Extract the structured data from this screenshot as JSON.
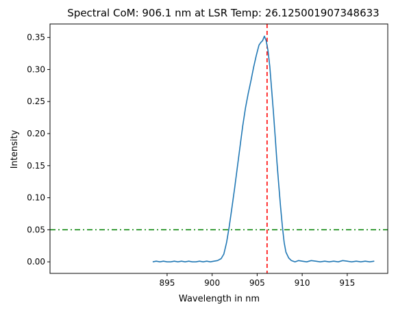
{
  "chart_data": {
    "type": "line",
    "title": "Spectral CoM: 906.1 nm at LSR Temp: 26.125001907348633",
    "xlabel": "Wavelength in nm",
    "ylabel": "Intensity",
    "xlim": [
      882.0,
      919.5
    ],
    "ylim": [
      -0.018,
      0.371
    ],
    "xticks": [
      895,
      900,
      905,
      910,
      915
    ],
    "xtick_labels": [
      "895",
      "900",
      "905",
      "910",
      "915"
    ],
    "yticks": [
      0.0,
      0.05,
      0.1,
      0.15,
      0.2,
      0.25,
      0.3,
      0.35
    ],
    "ytick_labels": [
      "0.00",
      "0.05",
      "0.10",
      "0.15",
      "0.20",
      "0.25",
      "0.30",
      "0.35"
    ],
    "grid": false,
    "series": [
      {
        "color": "#1f77b4",
        "x": [
          893.4,
          893.8,
          894.2,
          894.6,
          895.0,
          895.4,
          895.8,
          896.2,
          896.6,
          897.0,
          897.4,
          897.8,
          898.2,
          898.6,
          899.0,
          899.4,
          899.8,
          900.2,
          900.6,
          901.0,
          901.3,
          901.6,
          901.9,
          902.2,
          902.5,
          902.8,
          903.1,
          903.4,
          903.7,
          904.0,
          904.3,
          904.6,
          904.9,
          905.2,
          905.4,
          905.6,
          905.8,
          906.0,
          906.2,
          906.4,
          906.6,
          906.8,
          907.0,
          907.2,
          907.4,
          907.6,
          907.8,
          908.0,
          908.2,
          908.5,
          908.8,
          909.2,
          909.6,
          910.0,
          910.5,
          911.0,
          911.5,
          912.0,
          912.5,
          913.0,
          913.5,
          914.0,
          914.5,
          915.0,
          915.5,
          916.0,
          916.5,
          917.0,
          917.5,
          918.0
        ],
        "values": [
          0.0,
          0.001,
          0.0,
          0.001,
          0.0,
          0.0,
          0.001,
          0.0,
          0.001,
          0.0,
          0.001,
          0.0,
          0.0,
          0.001,
          0.0,
          0.001,
          0.0,
          0.001,
          0.002,
          0.005,
          0.012,
          0.03,
          0.055,
          0.085,
          0.115,
          0.148,
          0.18,
          0.212,
          0.24,
          0.262,
          0.282,
          0.303,
          0.322,
          0.338,
          0.342,
          0.345,
          0.352,
          0.345,
          0.33,
          0.305,
          0.27,
          0.235,
          0.195,
          0.155,
          0.12,
          0.085,
          0.055,
          0.03,
          0.015,
          0.006,
          0.002,
          0.0,
          0.002,
          0.001,
          0.0,
          0.002,
          0.001,
          0.0,
          0.001,
          0.0,
          0.001,
          0.0,
          0.002,
          0.001,
          0.0,
          0.001,
          0.0,
          0.001,
          0.0,
          0.001
        ]
      }
    ],
    "reference_lines": [
      {
        "orientation": "vertical",
        "value": 906.1,
        "style": "dashed",
        "color": "#ff0000"
      },
      {
        "orientation": "horizontal",
        "value": 0.05,
        "style": "dashdot",
        "color": "#008000"
      }
    ]
  }
}
